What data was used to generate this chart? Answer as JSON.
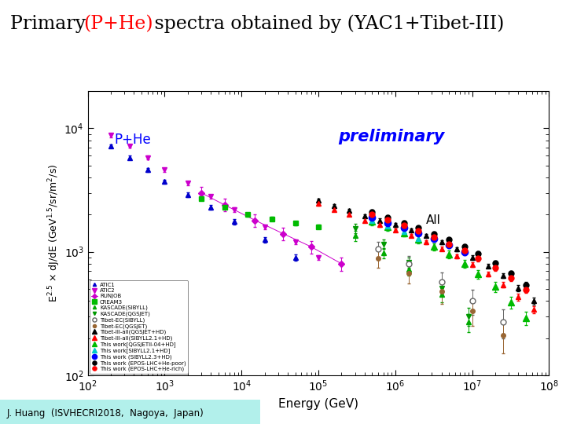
{
  "title_fontsize": 17,
  "ylabel": "E$^{2.5}$ $\\times$ dJ/dE (GeV$^{1.5}$/sr/m$^{2}$/s)",
  "xlabel": "Energy (GeV)",
  "xlim": [
    100.0,
    100000000.0
  ],
  "ylim": [
    100.0,
    20000.0
  ],
  "label_bottom": "J. Huang  (ISVHECRI2018,  Nagoya,  Japan)",
  "annotation_phe": "P+He",
  "annotation_all": "All",
  "annotation_preliminary": "preliminary",
  "datasets": [
    {
      "label": "ATIC1",
      "color": "#0000cc",
      "marker": "^",
      "markersize": 4,
      "mfc": "#0000cc",
      "x": [
        200,
        350,
        600,
        1000,
        2000,
        4000,
        8000,
        20000,
        50000
      ],
      "y": [
        7200,
        5800,
        4600,
        3700,
        2900,
        2300,
        1750,
        1250,
        900
      ],
      "yerr": [
        250,
        200,
        180,
        150,
        120,
        100,
        80,
        60,
        50
      ]
    },
    {
      "label": "ATIC2",
      "color": "#cc00cc",
      "marker": "v",
      "markersize": 5,
      "mfc": "#cc00cc",
      "x": [
        200,
        350,
        600,
        1000,
        2000,
        4000,
        8000,
        20000,
        50000,
        100000
      ],
      "y": [
        8800,
        7200,
        5800,
        4600,
        3600,
        2800,
        2200,
        1600,
        1200,
        900
      ],
      "yerr": [
        300,
        250,
        200,
        170,
        140,
        110,
        90,
        70,
        55,
        45
      ]
    },
    {
      "label": "RUNJOB",
      "color": "#cc00cc",
      "marker": "D",
      "markersize": 4,
      "mfc": "#cc00cc",
      "linestyle": "-",
      "x": [
        3000,
        6000,
        15000,
        35000,
        80000,
        200000
      ],
      "y": [
        3000,
        2400,
        1800,
        1400,
        1100,
        800
      ],
      "yerr": [
        350,
        280,
        210,
        160,
        130,
        100
      ]
    },
    {
      "label": "CREAM3",
      "color": "#00bb00",
      "marker": "s",
      "markersize": 5,
      "mfc": "#00bb00",
      "x": [
        3000,
        6000,
        12000,
        25000,
        50000,
        100000
      ],
      "y": [
        2700,
        2300,
        2000,
        1850,
        1700,
        1600
      ],
      "yerr": [
        80,
        70,
        65,
        60,
        55,
        55
      ]
    },
    {
      "label": "KASCADE(SIBYLL)",
      "color": "#00aa00",
      "marker": "^",
      "markersize": 4,
      "mfc": "#00aa00",
      "x": [
        300000,
        700000,
        1500000,
        4000000,
        9000000
      ],
      "y": [
        1350,
        980,
        720,
        450,
        270
      ],
      "yerr": [
        120,
        90,
        75,
        60,
        45
      ]
    },
    {
      "label": "KASCADE(QGSJET)",
      "color": "#009900",
      "marker": "v",
      "markersize": 4,
      "mfc": "#009900",
      "x": [
        300000,
        700000,
        1500000,
        4000000,
        9000000
      ],
      "y": [
        1550,
        1150,
        820,
        510,
        300
      ],
      "yerr": [
        130,
        100,
        80,
        65,
        50
      ]
    },
    {
      "label": "Tibet-EC(SIBYLL)",
      "color": "#666666",
      "marker": "o",
      "markersize": 5,
      "mfc": "white",
      "x": [
        600000,
        1500000,
        4000000,
        10000000,
        25000000
      ],
      "y": [
        1050,
        800,
        570,
        400,
        270
      ],
      "yerr": [
        160,
        130,
        110,
        90,
        70
      ]
    },
    {
      "label": "Tibet-EC(QGSJET)",
      "color": "#996633",
      "marker": "o",
      "markersize": 4,
      "mfc": "#996633",
      "x": [
        600000,
        1500000,
        4000000,
        10000000,
        25000000
      ],
      "y": [
        880,
        670,
        480,
        330,
        210
      ],
      "yerr": [
        140,
        120,
        100,
        80,
        60
      ]
    },
    {
      "label": "Tibet-III-all(QGSJET+HD)",
      "color": "black",
      "marker": "^",
      "markersize": 5,
      "mfc": "black",
      "x": [
        100000,
        160000,
        250000,
        400000,
        630000,
        1000000,
        1600000,
        2500000,
        4000000,
        6300000,
        10000000,
        16000000,
        25000000,
        40000000,
        63000000
      ],
      "y": [
        2600,
        2350,
        2150,
        1950,
        1800,
        1650,
        1500,
        1350,
        1200,
        1050,
        900,
        770,
        640,
        510,
        400
      ],
      "yerr": [
        80,
        70,
        65,
        60,
        55,
        50,
        47,
        44,
        40,
        38,
        35,
        32,
        30,
        28,
        26
      ]
    },
    {
      "label": "Tibet-III-all(SIBYLL2.1+HD)",
      "color": "red",
      "marker": "^",
      "markersize": 5,
      "mfc": "red",
      "x": [
        100000,
        160000,
        250000,
        400000,
        630000,
        1000000,
        1600000,
        2500000,
        4000000,
        6300000,
        10000000,
        16000000,
        25000000,
        40000000,
        63000000
      ],
      "y": [
        2450,
        2200,
        2000,
        1800,
        1650,
        1500,
        1350,
        1200,
        1060,
        920,
        790,
        660,
        540,
        430,
        340
      ],
      "yerr": [
        75,
        65,
        60,
        55,
        50,
        47,
        44,
        41,
        38,
        36,
        33,
        30,
        28,
        26,
        24
      ]
    },
    {
      "label": "This work[QGSJETII-04+HD]",
      "color": "#00bb00",
      "marker": "^",
      "markersize": 6,
      "mfc": "#00bb00",
      "x": [
        500000,
        800000,
        1300000,
        2000000,
        3200000,
        5000000,
        8000000,
        12000000,
        20000000,
        32000000,
        50000000
      ],
      "y": [
        1750,
        1580,
        1420,
        1260,
        1100,
        950,
        800,
        660,
        520,
        390,
        290
      ],
      "yerr": [
        120,
        105,
        95,
        85,
        75,
        68,
        60,
        55,
        48,
        42,
        36
      ]
    },
    {
      "label": "This work[SIBYLL2.1+HD]",
      "color": "#00cccc",
      "marker": "^",
      "markersize": 5,
      "mfc": "#00cccc",
      "x": [
        500000,
        800000,
        1300000,
        2000000
      ],
      "y": [
        1800,
        1620,
        1450,
        1280
      ],
      "yerr": [
        130,
        115,
        100,
        90
      ]
    },
    {
      "label": "This work (SIBYLL2.3+HD)",
      "color": "#0000ff",
      "marker": "o",
      "markersize": 6,
      "mfc": "#0000ff",
      "x": [
        500000,
        800000,
        1300000,
        2000000,
        3200000,
        5000000,
        8000000
      ],
      "y": [
        1900,
        1720,
        1570,
        1420,
        1270,
        1130,
        990
      ],
      "yerr": [
        100,
        88,
        78,
        70,
        63,
        57,
        52
      ]
    },
    {
      "label": "This work (EPOS-LHC+He-poor)",
      "color": "black",
      "marker": "o",
      "markersize": 5,
      "mfc": "black",
      "x": [
        500000,
        800000,
        1300000,
        2000000,
        3200000,
        5000000,
        8000000,
        12000000,
        20000000,
        32000000,
        50000000
      ],
      "y": [
        2100,
        1900,
        1720,
        1560,
        1400,
        1250,
        1100,
        960,
        810,
        670,
        540
      ],
      "yerr": [
        90,
        80,
        72,
        65,
        58,
        53,
        47,
        43,
        38,
        34,
        30
      ]
    },
    {
      "label": "This work (EPOS-LHC+He-rich)",
      "color": "red",
      "marker": "o",
      "markersize": 5,
      "mfc": "red",
      "x": [
        500000,
        800000,
        1300000,
        2000000,
        3200000,
        5000000,
        8000000,
        12000000,
        20000000,
        32000000,
        50000000
      ],
      "y": [
        2000,
        1810,
        1630,
        1470,
        1310,
        1160,
        1020,
        880,
        740,
        610,
        490
      ],
      "yerr": [
        85,
        75,
        68,
        61,
        55,
        50,
        45,
        41,
        36,
        32,
        28
      ]
    }
  ],
  "bg_color": "#ffffff",
  "plot_bg_color": "#ffffff",
  "footer_bg_color": "#b2f0eb"
}
